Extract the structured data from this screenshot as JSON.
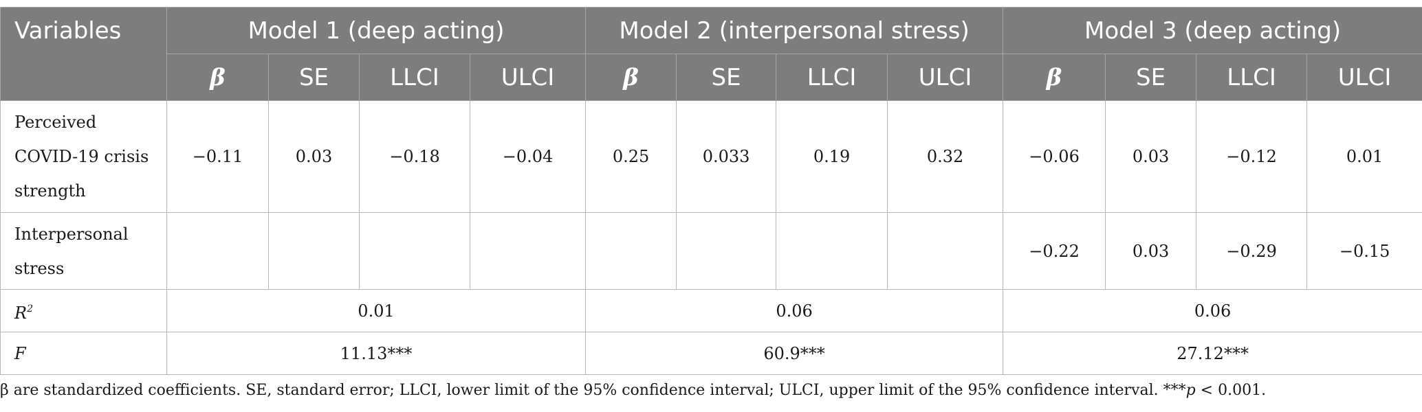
{
  "header": {
    "variables_label": "Variables",
    "models": [
      {
        "label": "Model 1 (deep acting)"
      },
      {
        "label": "Model 2 (interpersonal stress)"
      },
      {
        "label": "Model 3 (deep acting)"
      }
    ],
    "subcolumns": [
      "β",
      "SE",
      "LLCI",
      "ULCI"
    ]
  },
  "rows": {
    "covid": {
      "label_lines": [
        "Perceived",
        "COVID-19 crisis",
        "strength"
      ],
      "values": [
        "−0.11",
        "0.03",
        "−0.18",
        "−0.04",
        "0.25",
        "0.033",
        "0.19",
        "0.32",
        "−0.06",
        "0.03",
        "−0.12",
        "0.01"
      ]
    },
    "interpersonal": {
      "label_lines": [
        "Interpersonal",
        "stress"
      ],
      "values": [
        "",
        "",
        "",
        "",
        "",
        "",
        "",
        "",
        "−0.22",
        "0.03",
        "−0.29",
        "−0.15"
      ]
    },
    "r2": {
      "label": "R",
      "label_sup": "2",
      "values": [
        "0.01",
        "0.06",
        "0.06"
      ]
    },
    "f": {
      "label": "F",
      "values": [
        "11.13***",
        "60.9***",
        "27.12***"
      ]
    }
  },
  "footnote": {
    "text": "β are standardized coefficients. SE, standard error; LLCI, lower limit of the 95% confidence interval; ULCI, upper limit of the 95% confidence interval. ***",
    "p_symbol": "p",
    "p_rest": " < 0.001."
  }
}
